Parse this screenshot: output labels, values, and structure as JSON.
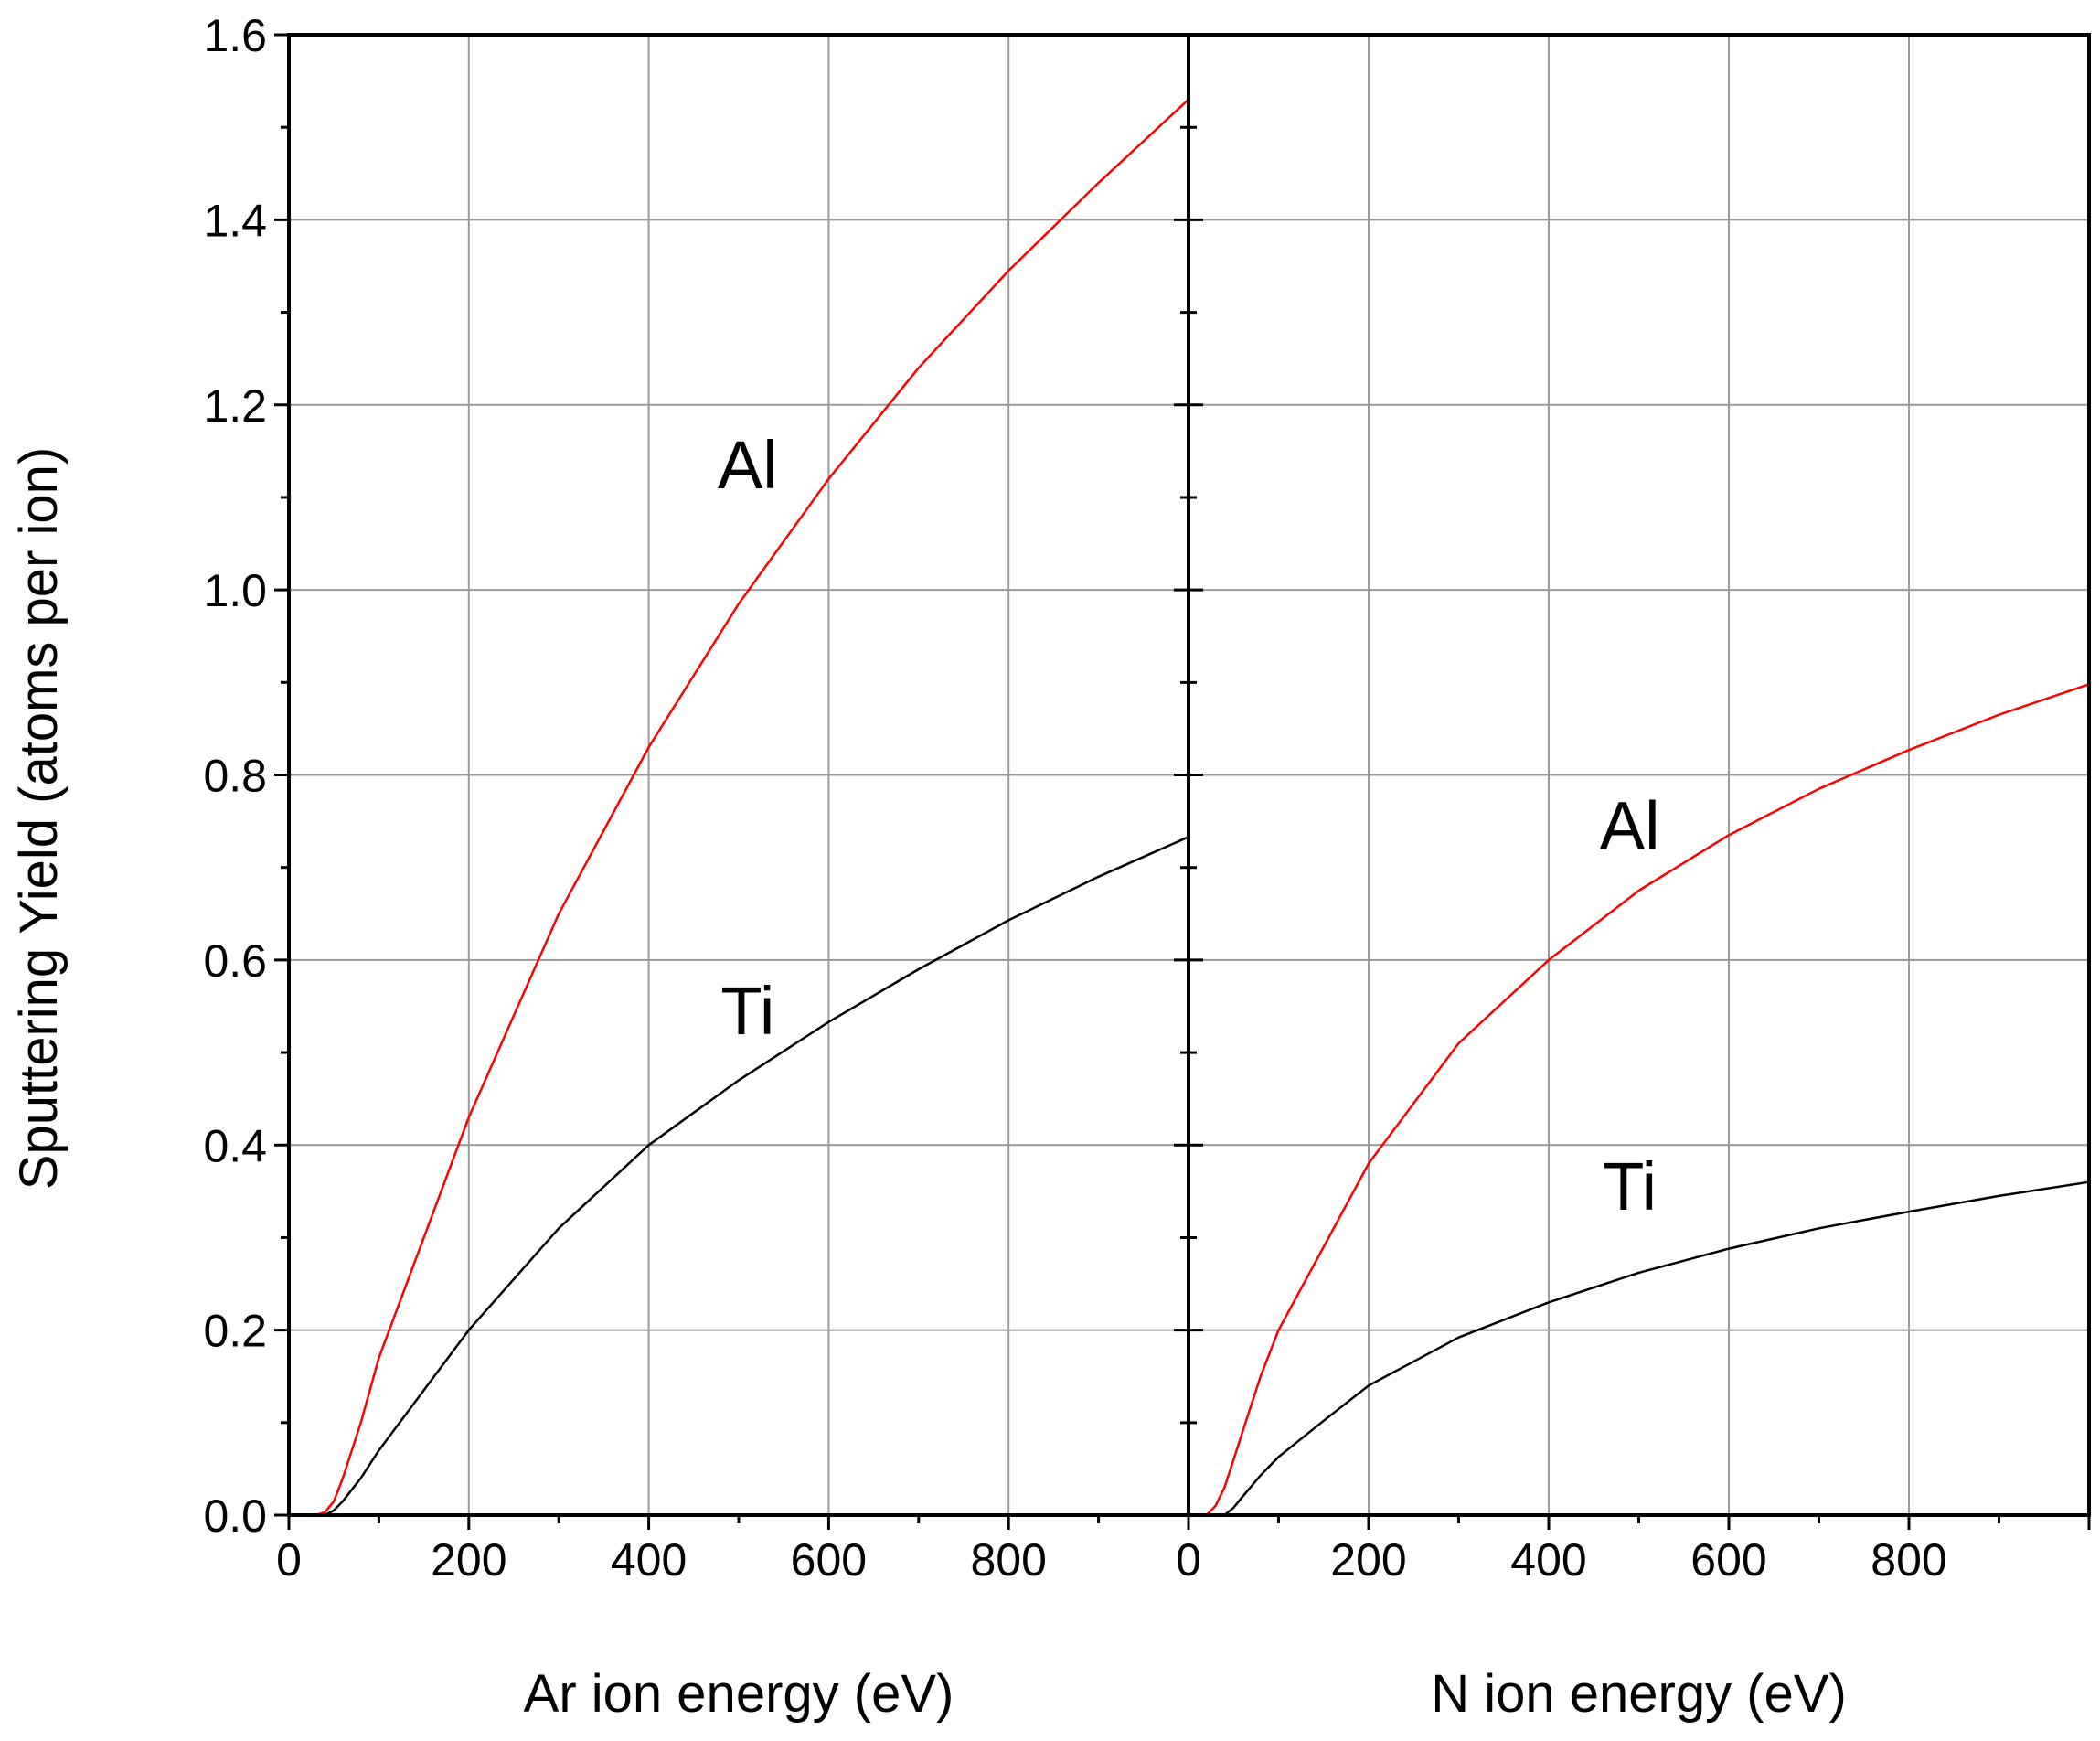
{
  "figure": {
    "ylabel": "Sputtering Yield (atoms per ion)"
  },
  "chart_data": [
    {
      "type": "line",
      "name": "ar-panel",
      "xlabel": "Ar ion energy (eV)",
      "ylabel": "Sputtering Yield (atoms per ion)",
      "xlim": [
        0,
        1000
      ],
      "ylim": [
        0,
        1.6
      ],
      "xticks": [
        0,
        200,
        400,
        600,
        800
      ],
      "yticks": [
        0.0,
        0.2,
        0.4,
        0.6,
        0.8,
        1.0,
        1.2,
        1.4,
        1.6
      ],
      "ytick_labels": [
        "0.0",
        "0.2",
        "0.4",
        "0.6",
        "0.8",
        "1.0",
        "1.2",
        "1.4",
        "1.6"
      ],
      "grid": true,
      "series": [
        {
          "name": "Al",
          "color": "#ff0000",
          "x": [
            0,
            30,
            40,
            50,
            60,
            80,
            100,
            150,
            200,
            300,
            400,
            500,
            600,
            700,
            800,
            900,
            1000
          ],
          "y": [
            0,
            0,
            0.003,
            0.015,
            0.04,
            0.1,
            0.17,
            0.3,
            0.43,
            0.65,
            0.83,
            0.985,
            1.12,
            1.24,
            1.345,
            1.44,
            1.53
          ]
        },
        {
          "name": "Ti",
          "color": "#000000",
          "x": [
            0,
            40,
            50,
            60,
            80,
            100,
            150,
            200,
            300,
            400,
            500,
            600,
            700,
            800,
            900,
            1000
          ],
          "y": [
            0,
            0,
            0.005,
            0.015,
            0.04,
            0.07,
            0.135,
            0.2,
            0.31,
            0.4,
            0.47,
            0.533,
            0.59,
            0.643,
            0.69,
            0.733
          ]
        }
      ],
      "annotations": [
        {
          "text": "Al",
          "x": 510,
          "y": 1.11
        },
        {
          "text": "Ti",
          "x": 510,
          "y": 0.52
        }
      ]
    },
    {
      "type": "line",
      "name": "n-panel",
      "xlabel": "N ion energy (eV)",
      "ylabel": "Sputtering Yield (atoms per ion)",
      "xlim": [
        0,
        1000
      ],
      "ylim": [
        0,
        1.6
      ],
      "xticks": [
        0,
        200,
        400,
        600,
        800
      ],
      "yticks": [
        0.0,
        0.2,
        0.4,
        0.6,
        0.8,
        1.0,
        1.2,
        1.4,
        1.6
      ],
      "grid": true,
      "series": [
        {
          "name": "Al",
          "color": "#ff0000",
          "x": [
            0,
            20,
            30,
            40,
            50,
            60,
            80,
            100,
            150,
            200,
            300,
            400,
            500,
            600,
            700,
            800,
            900,
            1000
          ],
          "y": [
            0,
            0,
            0.01,
            0.03,
            0.06,
            0.09,
            0.15,
            0.2,
            0.29,
            0.38,
            0.51,
            0.6,
            0.675,
            0.735,
            0.785,
            0.827,
            0.865,
            0.898
          ]
        },
        {
          "name": "Ti",
          "color": "#000000",
          "x": [
            0,
            40,
            50,
            60,
            80,
            100,
            150,
            200,
            300,
            400,
            500,
            600,
            700,
            800,
            900,
            1000
          ],
          "y": [
            0,
            0,
            0.008,
            0.02,
            0.043,
            0.063,
            0.102,
            0.14,
            0.192,
            0.23,
            0.262,
            0.288,
            0.31,
            0.328,
            0.345,
            0.36
          ]
        }
      ],
      "annotations": [
        {
          "text": "Al",
          "x": 490,
          "y": 0.72
        },
        {
          "text": "Ti",
          "x": 490,
          "y": 0.33
        }
      ]
    }
  ]
}
